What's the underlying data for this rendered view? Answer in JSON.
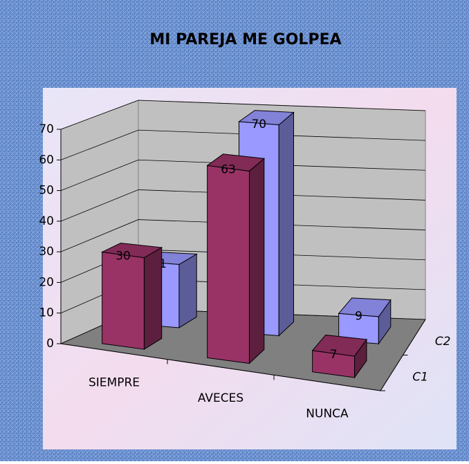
{
  "chart_data": {
    "type": "bar3d",
    "title": "MI PAREJA ME GOLPEA",
    "categories": [
      "SIEMPRE",
      "AVECES",
      "NUNCA"
    ],
    "series": [
      {
        "name": "C1",
        "color": "#993366",
        "values": [
          30,
          63,
          7
        ]
      },
      {
        "name": "C2",
        "color": "#9999ff",
        "values": [
          21,
          70,
          9
        ]
      }
    ],
    "ylim": [
      0,
      70
    ],
    "yticks": [
      0,
      10,
      20,
      30,
      40,
      50,
      60,
      70
    ],
    "grid": true
  }
}
